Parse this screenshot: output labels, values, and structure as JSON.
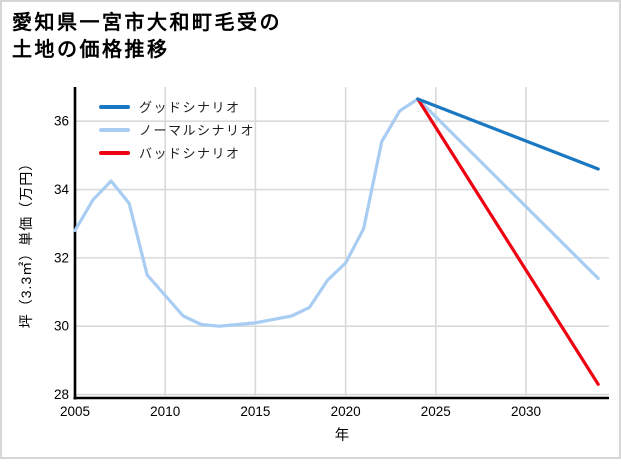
{
  "header": {
    "title_lines": [
      "愛知県一宮市大和町毛受の",
      "土地の価格推移"
    ]
  },
  "chart_data": {
    "type": "line",
    "title": "愛知県一宮市大和町毛受の土地の価格推移",
    "xlabel": "年",
    "ylabel": "坪（3.3㎡）単価（万円）",
    "x_ticks": [
      2005,
      2010,
      2015,
      2020,
      2025,
      2030
    ],
    "y_ticks": [
      28,
      30,
      32,
      34,
      36
    ],
    "xlim": [
      2005,
      2034.6
    ],
    "ylim": [
      27.9,
      37.0
    ],
    "grid": true,
    "legend_position": "upper-left",
    "series": [
      {
        "name": "グッドシナリオ",
        "color": "#1a78c2",
        "x": [
          2024,
          2034
        ],
        "values": [
          36.65,
          34.6
        ]
      },
      {
        "name": "ノーマルシナリオ",
        "color": "#a9cdf2",
        "x": [
          2005,
          2006,
          2007,
          2008,
          2009,
          2010,
          2011,
          2012,
          2013,
          2014,
          2015,
          2016,
          2017,
          2018,
          2019,
          2020,
          2021,
          2022,
          2023,
          2024,
          2034
        ],
        "values": [
          32.8,
          33.7,
          34.25,
          33.6,
          31.5,
          30.9,
          30.3,
          30.05,
          30.0,
          30.05,
          30.1,
          30.2,
          30.3,
          30.55,
          31.35,
          31.85,
          32.85,
          35.4,
          36.3,
          36.65,
          31.4
        ]
      },
      {
        "name": "バッドシナリオ",
        "color": "#ee0211",
        "x": [
          2024,
          2034
        ],
        "values": [
          36.65,
          28.3
        ]
      }
    ],
    "grid_color": "#d9d9d9",
    "axis_color": "#000000",
    "tick_label_color": "#000000"
  }
}
